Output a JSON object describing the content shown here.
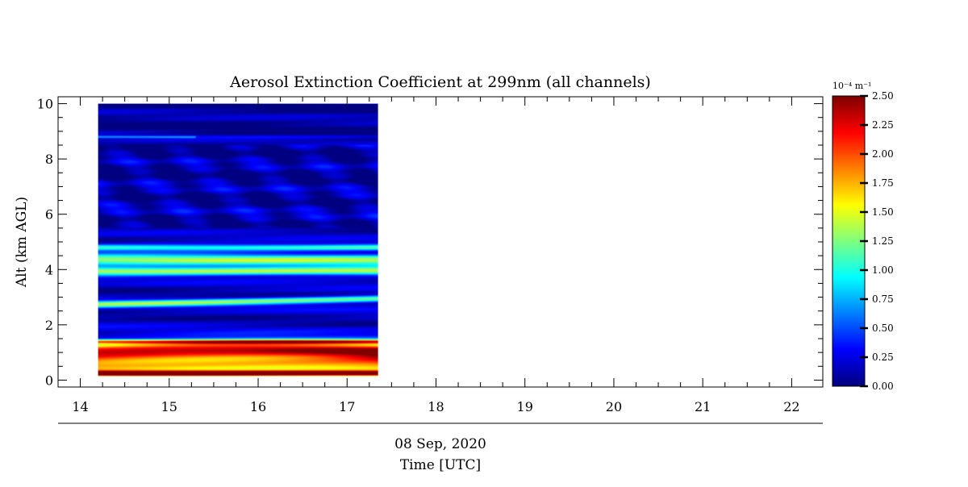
{
  "chart_data": {
    "type": "heatmap",
    "title": "Aerosol Extinction Coefficient at 299nm (all channels)",
    "ylabel": "Alt (km AGL)",
    "xlabel_date": "08 Sep, 2020",
    "xlabel": "Time [UTC]",
    "xlim": [
      13.75,
      22.35
    ],
    "ylim": [
      -0.25,
      10.25
    ],
    "xticks": [
      "14",
      "15",
      "16",
      "17",
      "18",
      "19",
      "20",
      "21",
      "22"
    ],
    "yticks": [
      "0",
      "2",
      "4",
      "6",
      "8",
      "10"
    ],
    "data_time_range": [
      14.2,
      17.35
    ],
    "data_alt_range": [
      0.15,
      10.0
    ],
    "colorbar": {
      "unit": "10⁻⁴ m⁻¹",
      "range": [
        0.0,
        2.5
      ],
      "ticks": [
        "0.00",
        "0.25",
        "0.50",
        "0.75",
        "1.00",
        "1.25",
        "1.50",
        "1.75",
        "2.00",
        "2.25",
        "2.50"
      ],
      "colormap": "jet"
    },
    "layers": [
      {
        "alt": 0.25,
        "width": 0.1,
        "value": 2.2
      },
      {
        "alt": 0.55,
        "width": 0.35,
        "value": 1.55
      },
      {
        "alt": 1.05,
        "width": 0.3,
        "value": 1.85
      },
      {
        "alt": 1.4,
        "width": 0.08,
        "value": 1.5
      },
      {
        "alt": 2.75,
        "width": 0.12,
        "value": 1.1
      },
      {
        "alt": 3.95,
        "width": 0.15,
        "value": 1.3
      },
      {
        "alt": 4.35,
        "width": 0.2,
        "value": 1.15
      },
      {
        "alt": 4.8,
        "width": 0.12,
        "value": 1.0
      },
      {
        "alt": 8.8,
        "width": 0.05,
        "value": 0.55
      }
    ],
    "background_value": 0.2
  },
  "colors": {
    "axis": "#000000",
    "background": "#ffffff",
    "no_data": "#ffffff"
  }
}
